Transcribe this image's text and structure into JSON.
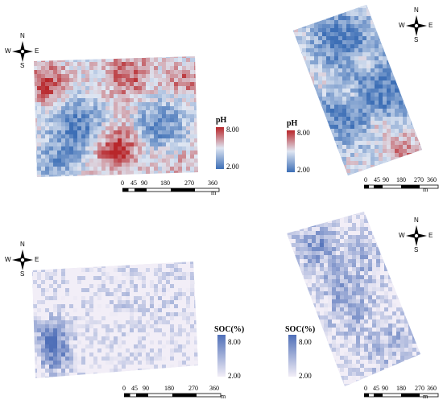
{
  "panels": [
    {
      "id": "ph-rect",
      "variable": "ph",
      "legend": {
        "title": "pH",
        "max": "8.00",
        "min": "2.00"
      },
      "scale": {
        "ticks": [
          "0",
          "45",
          "90",
          "180",
          "270",
          "360"
        ],
        "unit": "m"
      },
      "compass": {
        "n": "N",
        "s": "S",
        "e": "E",
        "w": "W"
      }
    },
    {
      "id": "ph-tilted",
      "variable": "ph",
      "legend": {
        "title": "pH",
        "max": "8.00",
        "min": "2.00"
      },
      "scale": {
        "ticks": [
          "0",
          "45",
          "90",
          "180",
          "270",
          "360"
        ],
        "unit": "m"
      },
      "compass": {
        "n": "N",
        "s": "S",
        "e": "E",
        "w": "W"
      }
    },
    {
      "id": "soc-rect",
      "variable": "soc",
      "legend": {
        "title": "SOC(%)",
        "max": "8.00",
        "min": "2.00"
      },
      "scale": {
        "ticks": [
          "0",
          "45",
          "90",
          "180",
          "270",
          "360"
        ],
        "unit": "m"
      },
      "compass": {
        "n": "N",
        "s": "S",
        "e": "E",
        "w": "W"
      }
    },
    {
      "id": "soc-tilted",
      "variable": "soc",
      "legend": {
        "title": "SOC(%)",
        "max": "8.00",
        "min": "2.00"
      },
      "scale": {
        "ticks": [
          "0",
          "45",
          "90",
          "180",
          "270",
          "360"
        ],
        "unit": "m"
      },
      "compass": {
        "n": "N",
        "s": "S",
        "e": "E",
        "w": "W"
      }
    }
  ],
  "colors": {
    "ph_low": "#3d6fb6",
    "ph_mid": "#dfe6f2",
    "ph_high": "#b8262a",
    "soc_low": "#f2eef7",
    "soc_high": "#4f6fb8"
  }
}
